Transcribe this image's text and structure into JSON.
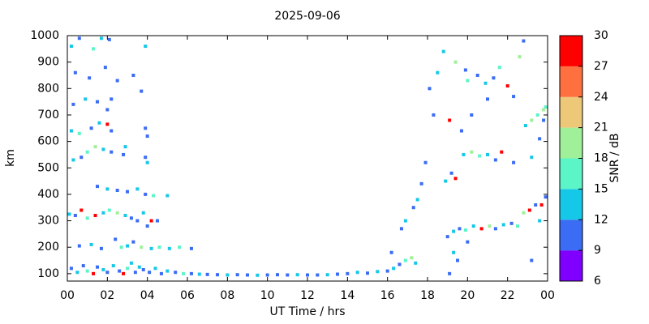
{
  "chart_data": {
    "type": "scatter",
    "title": "2025-09-06",
    "xlabel": "UT Time / hrs",
    "ylabel": "km",
    "xlim": [
      0,
      24
    ],
    "ylim": [
      72,
      1000
    ],
    "xticks": [
      {
        "value": 0,
        "label": "00"
      },
      {
        "value": 2,
        "label": "02"
      },
      {
        "value": 4,
        "label": "04"
      },
      {
        "value": 6,
        "label": "06"
      },
      {
        "value": 8,
        "label": "08"
      },
      10,
      12,
      14,
      16,
      18,
      20,
      22,
      {
        "value": 24,
        "label": "00"
      }
    ],
    "yticks": [
      100,
      200,
      300,
      400,
      500,
      600,
      700,
      800,
      900,
      1000
    ],
    "colorbar": {
      "label": "SNR / dB",
      "boundaries": [
        6,
        9,
        12,
        15,
        18,
        21,
        24,
        27,
        30
      ],
      "colors": [
        "#8000ff",
        "#3a6cf4",
        "#16c8e8",
        "#5cf5c8",
        "#a0f09a",
        "#ecc878",
        "#ff7040",
        "#ff0000"
      ],
      "ticks": [
        6,
        9,
        12,
        15,
        18,
        21,
        24,
        27,
        30
      ]
    },
    "x": [
      0.2,
      0.5,
      0.8,
      1.0,
      1.3,
      1.5,
      1.8,
      2.0,
      2.3,
      2.6,
      2.8,
      3.0,
      3.2,
      3.4,
      3.6,
      3.8,
      4.1,
      4.4,
      4.7,
      5.0,
      5.4,
      5.8,
      6.2,
      6.6,
      7.0,
      7.5,
      8.0,
      8.5,
      9.0,
      9.5,
      10.0,
      10.5,
      11.0,
      11.5,
      12.0,
      12.5,
      13.0,
      13.5,
      14.0,
      14.5,
      15.0,
      15.5,
      16.0,
      16.3,
      16.6,
      16.9,
      17.2,
      17.4,
      16.2,
      16.7,
      16.9,
      17.3,
      17.5,
      17.7,
      17.9,
      0.6,
      1.2,
      1.7,
      2.4,
      2.7,
      3.0,
      3.3,
      3.7,
      4.2,
      4.6,
      5.1,
      5.6,
      6.2,
      0.1,
      0.4,
      0.7,
      1.0,
      1.4,
      1.8,
      2.1,
      2.5,
      2.9,
      3.2,
      3.5,
      3.8,
      4.0,
      4.2,
      4.5,
      1.5,
      2.0,
      2.5,
      3.0,
      3.5,
      3.9,
      4.3,
      5.0,
      0.3,
      0.7,
      1.0,
      1.4,
      1.8,
      2.2,
      2.8,
      3.9,
      4.0,
      2.9,
      0.2,
      0.6,
      1.2,
      1.6,
      2.0,
      2.2,
      3.9,
      4.0,
      0.3,
      0.9,
      1.5,
      2.2,
      3.7,
      2.0,
      0.4,
      1.1,
      1.9,
      3.3,
      2.5,
      0.2,
      0.6,
      1.3,
      1.7,
      2.1,
      3.9,
      19.0,
      19.3,
      19.6,
      19.9,
      20.3,
      20.7,
      21.1,
      21.4,
      21.8,
      22.2,
      22.5,
      22.8,
      23.1,
      23.4,
      23.7,
      23.9,
      23.6,
      20.0,
      19.1,
      19.5,
      19.3,
      23.2,
      18.9,
      19.2,
      19.4,
      19.8,
      20.2,
      20.6,
      21.0,
      21.4,
      21.7,
      22.3,
      23.2,
      23.6,
      23.8,
      23.9,
      18.3,
      19.1,
      19.7,
      22.9,
      23.2,
      23.5,
      23.8,
      20.2,
      21.0,
      18.1,
      18.5,
      19.4,
      20.0,
      20.5,
      20.9,
      21.3,
      21.6,
      22.0,
      22.3,
      22.6,
      22.8,
      18.8,
      19.9
    ],
    "y": [
      120,
      105,
      130,
      110,
      100,
      125,
      115,
      105,
      130,
      110,
      100,
      120,
      140,
      105,
      125,
      115,
      105,
      120,
      100,
      110,
      105,
      100,
      100,
      98,
      97,
      96,
      95,
      96,
      95,
      94,
      95,
      96,
      95,
      96,
      95,
      95,
      96,
      98,
      100,
      105,
      102,
      108,
      110,
      120,
      135,
      150,
      160,
      140,
      180,
      270,
      300,
      350,
      380,
      440,
      520,
      205,
      210,
      195,
      230,
      200,
      205,
      220,
      200,
      195,
      200,
      195,
      200,
      195,
      325,
      320,
      340,
      310,
      320,
      330,
      340,
      330,
      320,
      310,
      300,
      330,
      280,
      300,
      300,
      430,
      420,
      415,
      410,
      420,
      400,
      395,
      395,
      530,
      540,
      560,
      580,
      570,
      560,
      550,
      540,
      520,
      580,
      640,
      630,
      650,
      670,
      665,
      640,
      650,
      620,
      740,
      760,
      750,
      760,
      790,
      720,
      860,
      840,
      880,
      850,
      830,
      960,
      990,
      950,
      990,
      985,
      960,
      240,
      260,
      270,
      265,
      280,
      270,
      280,
      270,
      285,
      290,
      280,
      330,
      340,
      360,
      360,
      390,
      300,
      220,
      100,
      150,
      180,
      150,
      450,
      480,
      460,
      550,
      560,
      545,
      550,
      530,
      560,
      520,
      540,
      610,
      680,
      730,
      700,
      680,
      640,
      660,
      680,
      700,
      720,
      700,
      760,
      800,
      860,
      900,
      830,
      850,
      820,
      840,
      880,
      810,
      770,
      920,
      980,
      940,
      870
    ],
    "snr": [
      10,
      13,
      10,
      16,
      28,
      10,
      13,
      10,
      14,
      10,
      28,
      16,
      13,
      10,
      14,
      10,
      10,
      13,
      10,
      14,
      10,
      16,
      10,
      13,
      10,
      10,
      13,
      10,
      10,
      13,
      10,
      10,
      10,
      13,
      10,
      10,
      13,
      10,
      10,
      13,
      10,
      14,
      10,
      13,
      10,
      16,
      19,
      13,
      10,
      10,
      13,
      10,
      14,
      10,
      10,
      10,
      13,
      10,
      10,
      16,
      13,
      10,
      19,
      13,
      16,
      13,
      16,
      10,
      13,
      10,
      28,
      16,
      28,
      13,
      16,
      19,
      13,
      10,
      10,
      13,
      10,
      28,
      10,
      10,
      13,
      10,
      10,
      13,
      10,
      16,
      13,
      13,
      10,
      16,
      19,
      13,
      10,
      10,
      10,
      13,
      13,
      13,
      16,
      10,
      13,
      28,
      10,
      10,
      10,
      10,
      13,
      10,
      10,
      10,
      10,
      10,
      10,
      10,
      10,
      10,
      13,
      10,
      16,
      13,
      10,
      13,
      10,
      13,
      10,
      16,
      13,
      28,
      19,
      10,
      13,
      10,
      16,
      19,
      28,
      10,
      28,
      10,
      13,
      10,
      10,
      10,
      13,
      10,
      13,
      10,
      28,
      13,
      19,
      16,
      13,
      10,
      28,
      10,
      13,
      10,
      10,
      16,
      10,
      28,
      10,
      13,
      19,
      16,
      19,
      10,
      10,
      10,
      13,
      19,
      16,
      10,
      13,
      10,
      16,
      28,
      10,
      19,
      10,
      13,
      10
    ]
  }
}
